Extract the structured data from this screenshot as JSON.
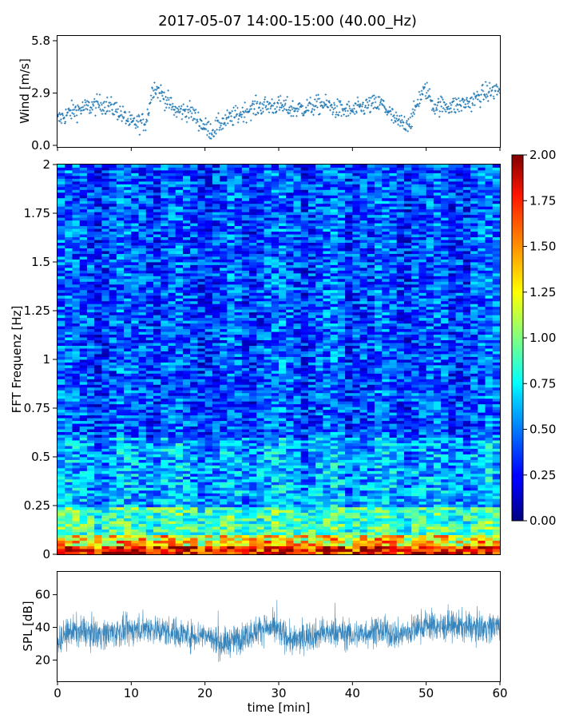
{
  "title": "2017-05-07 14:00-15:00 (40.00_Hz)",
  "colors": {
    "series": "#1f77b4"
  },
  "chart_data": [
    {
      "type": "scatter",
      "name": "wind",
      "ylabel": "Wind [m/s]",
      "xlabel": "",
      "xlim": [
        0,
        60
      ],
      "ylim": [
        0,
        6
      ],
      "yticks": [
        "0.0",
        "2.9",
        "5.8"
      ],
      "ytick_values": [
        0.0,
        2.9,
        5.8
      ],
      "trend_x": [
        0,
        2,
        4,
        6,
        8,
        10,
        12,
        13,
        14,
        16,
        18,
        20,
        21,
        22,
        24,
        26,
        28,
        30,
        32,
        34,
        36,
        38,
        40,
        42,
        44,
        46,
        47,
        48,
        49,
        50,
        51,
        52,
        54,
        56,
        58,
        60
      ],
      "trend_y": [
        1.4,
        1.9,
        2.1,
        2.3,
        2.0,
        1.2,
        1.3,
        3.3,
        2.9,
        1.9,
        1.9,
        1.0,
        0.8,
        1.2,
        1.6,
        2.0,
        2.2,
        2.2,
        2.0,
        2.1,
        2.3,
        2.0,
        1.9,
        2.2,
        2.3,
        1.3,
        1.2,
        1.4,
        2.6,
        3.1,
        2.2,
        2.2,
        2.2,
        2.4,
        2.9,
        3.1
      ]
    },
    {
      "type": "heatmap",
      "name": "spectrogram",
      "ylabel": "FFT Frequenz [Hz]",
      "xlim": [
        0,
        60
      ],
      "ylim": [
        0,
        2
      ],
      "yticks": [
        "0",
        "0.25",
        "0.5",
        "0.75",
        "1",
        "1.25",
        "1.5",
        "1.75",
        "2"
      ],
      "ytick_values": [
        0,
        0.25,
        0.5,
        0.75,
        1,
        1.25,
        1.5,
        1.75,
        2
      ],
      "colorbar": {
        "range": [
          0,
          2
        ],
        "ticks": [
          "0.00",
          "0.25",
          "0.50",
          "0.75",
          "1.00",
          "1.25",
          "1.50",
          "1.75",
          "2.00"
        ],
        "tick_values": [
          0,
          0.25,
          0.5,
          0.75,
          1.0,
          1.25,
          1.5,
          1.75,
          2.0
        ],
        "colormap": "jet"
      }
    },
    {
      "type": "line",
      "name": "spl",
      "ylabel": "SPL [dB]",
      "xlabel": "time [min]",
      "xlim": [
        0,
        60
      ],
      "ylim": [
        7,
        74
      ],
      "yticks": [
        "20",
        "40",
        "60"
      ],
      "ytick_values": [
        20,
        40,
        60
      ],
      "xticks": [
        "0",
        "10",
        "20",
        "30",
        "40",
        "50",
        "60"
      ],
      "xtick_values": [
        0,
        10,
        20,
        30,
        40,
        50,
        60
      ],
      "trend_x": [
        0,
        2,
        4,
        6,
        8,
        10,
        12,
        14,
        16,
        18,
        20,
        22,
        24,
        26,
        28,
        30,
        32,
        34,
        36,
        38,
        40,
        42,
        44,
        46,
        48,
        50,
        52,
        54,
        56,
        58,
        60
      ],
      "trend_y": [
        32,
        38,
        37,
        36,
        37,
        38,
        40,
        38,
        37,
        35,
        36,
        30,
        32,
        36,
        40,
        38,
        31,
        35,
        36,
        37,
        35,
        37,
        38,
        35,
        38,
        42,
        40,
        41,
        40,
        40,
        41
      ]
    }
  ]
}
